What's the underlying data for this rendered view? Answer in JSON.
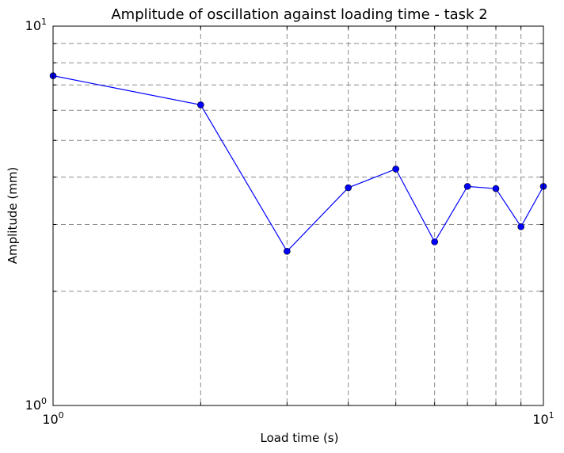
{
  "chart_data": {
    "type": "line",
    "title": "Amplitude of oscillation against loading time - task 2",
    "xlabel": "Load time (s)",
    "ylabel": "Amplitude (mm)",
    "xscale": "log",
    "yscale": "log",
    "xlim": [
      1,
      10
    ],
    "ylim": [
      1,
      10
    ],
    "grid": true,
    "x_ticks": [
      {
        "value": 1,
        "base": "10",
        "exp": "0"
      },
      {
        "value": 10,
        "base": "10",
        "exp": "1"
      }
    ],
    "y_ticks": [
      {
        "value": 1,
        "base": "10",
        "exp": "0"
      },
      {
        "value": 10,
        "base": "10",
        "exp": "1"
      }
    ],
    "series": [
      {
        "color": "#0000ff",
        "marker": "circle",
        "x": [
          1,
          2,
          3,
          4,
          5,
          6,
          7,
          8,
          9,
          10
        ],
        "y": [
          7.4,
          6.2,
          2.55,
          3.75,
          4.2,
          2.7,
          3.78,
          3.73,
          2.96,
          3.78
        ]
      }
    ]
  }
}
